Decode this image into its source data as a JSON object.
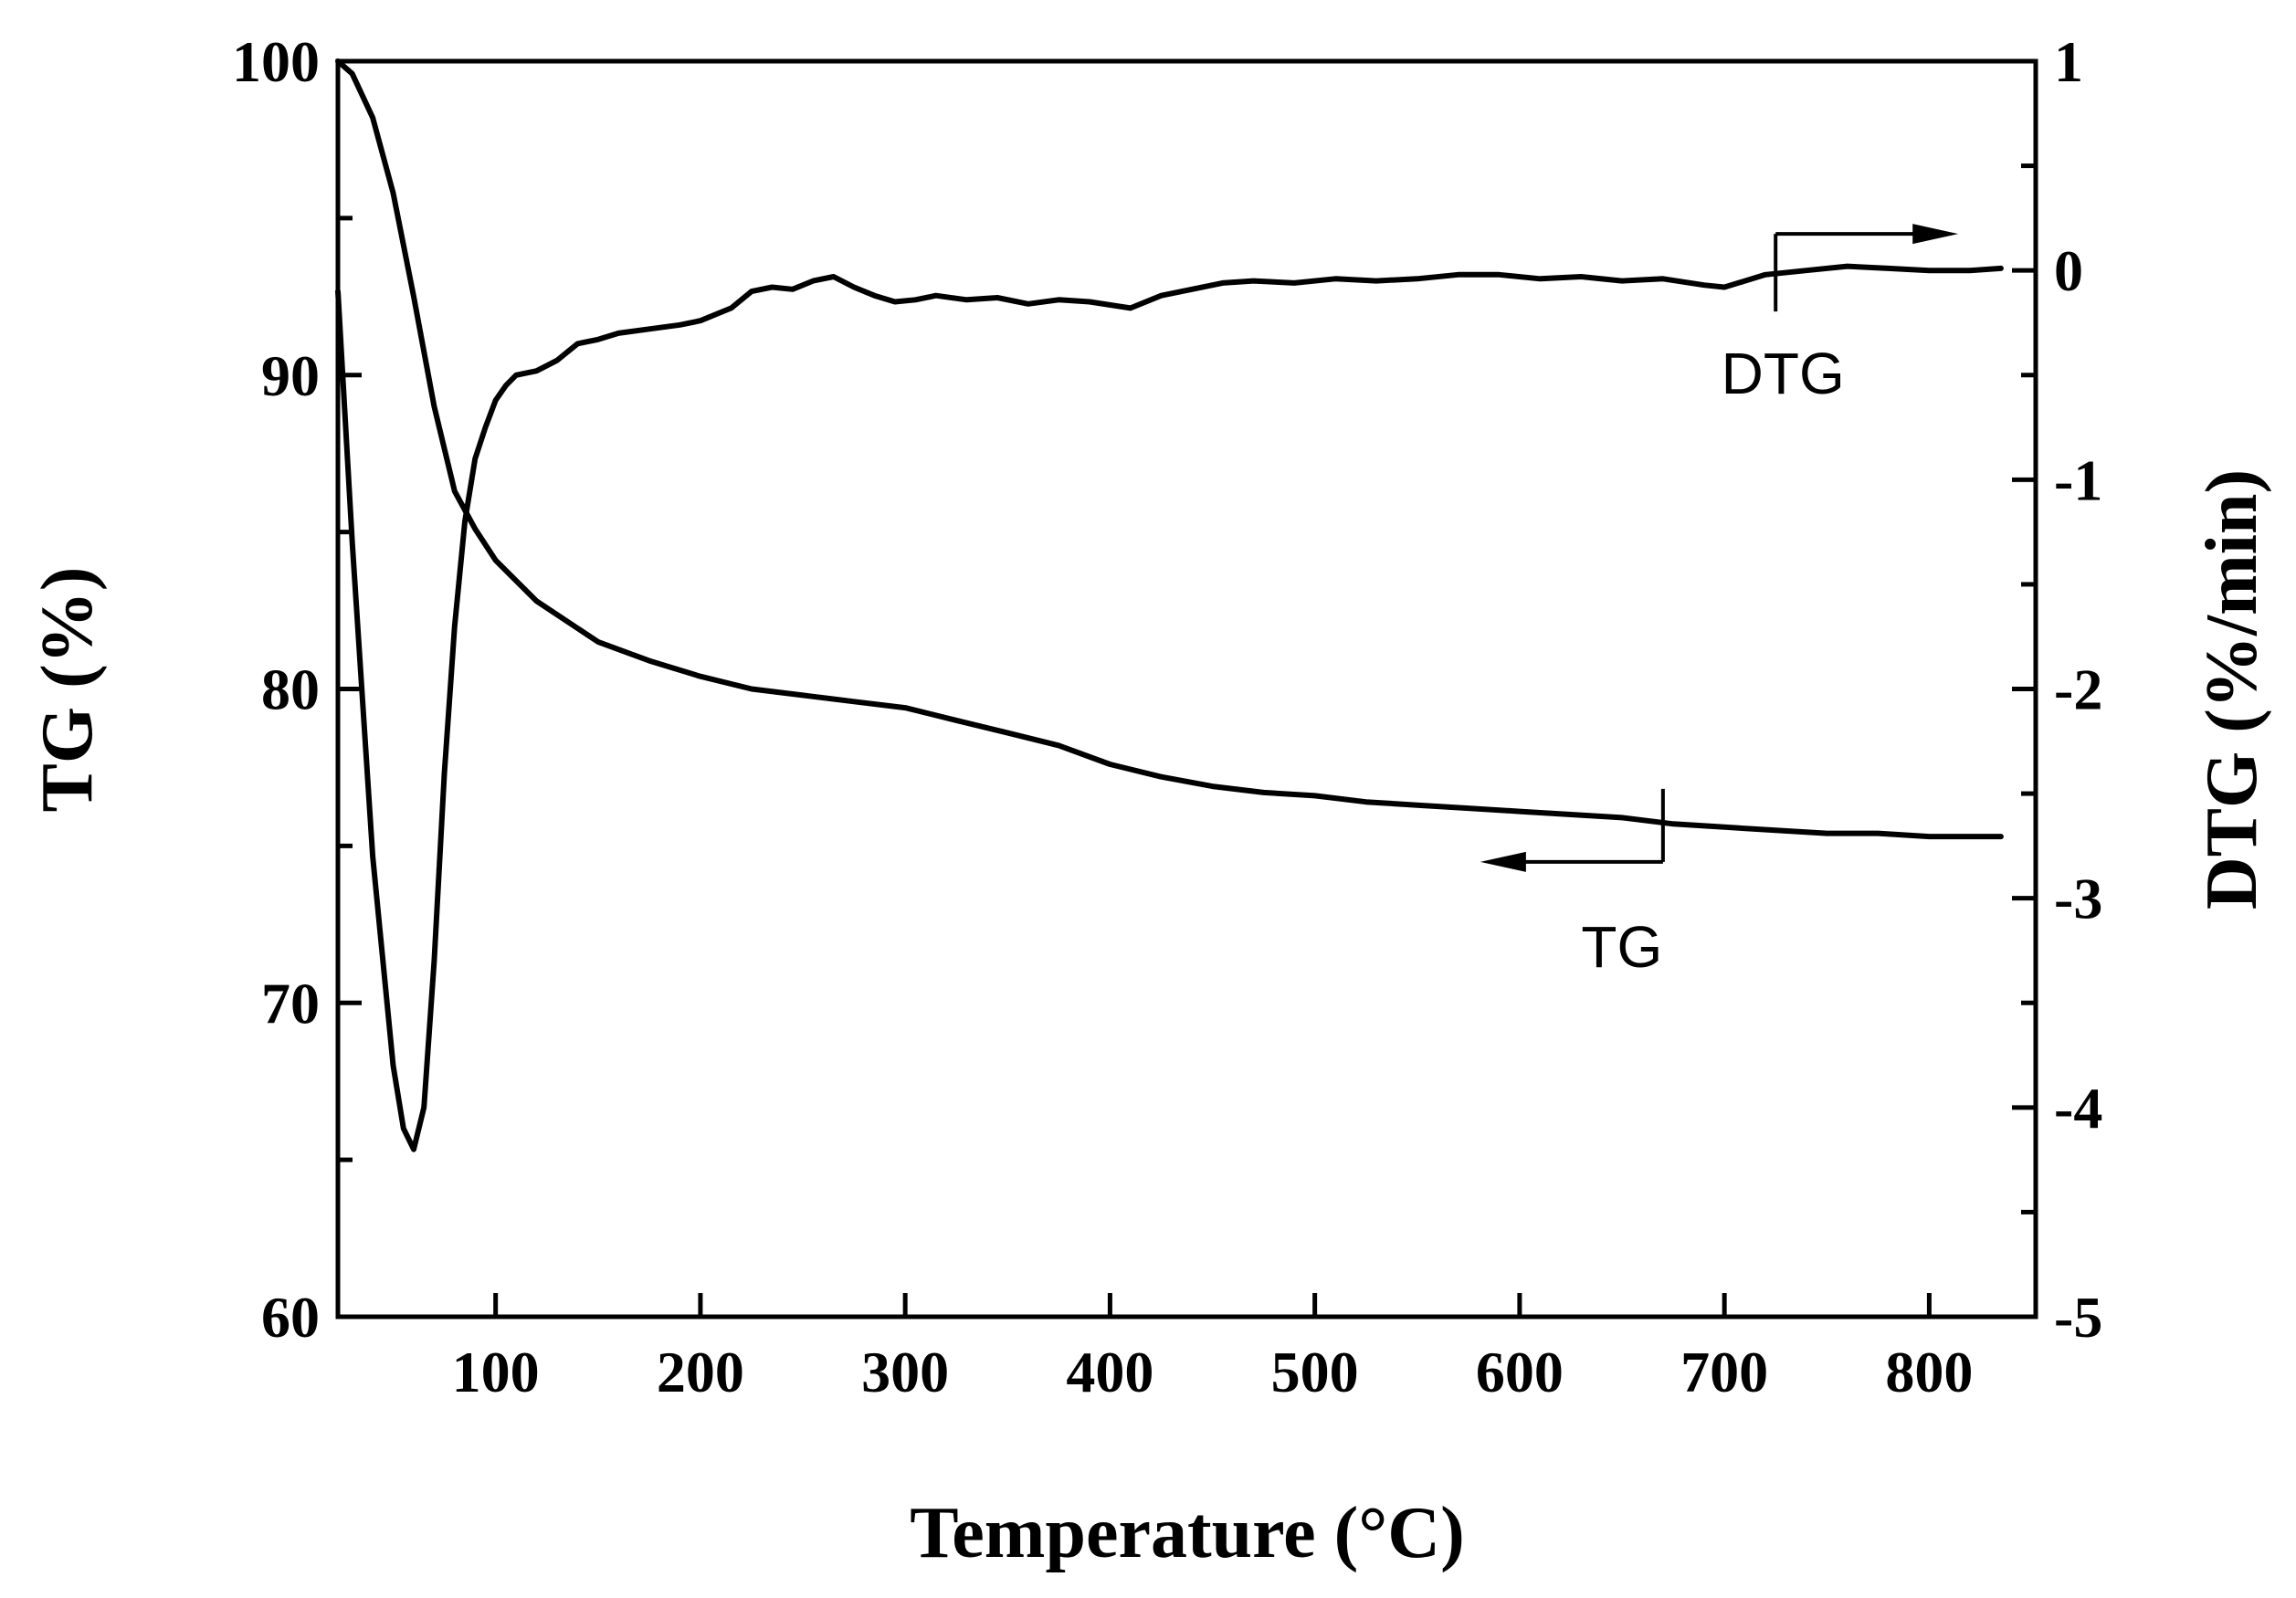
{
  "chart_data": {
    "type": "line",
    "title": "",
    "xlabel": "Temperature (°C)",
    "ylabel_left": "TG (%)",
    "ylabel_right": "DTG (%/min)",
    "xlim": [
      23,
      852
    ],
    "ylim_left": [
      60,
      100
    ],
    "ylim_right": [
      -5,
      1
    ],
    "x_ticks": [
      100,
      200,
      300,
      400,
      500,
      600,
      700,
      800
    ],
    "x_tick_labels": [
      "100",
      "200",
      "300",
      "400",
      "500",
      "600",
      "700",
      "800"
    ],
    "y_left_ticks": [
      60,
      70,
      80,
      90,
      100
    ],
    "y_left_tick_labels": [
      "60",
      "70",
      "80",
      "90",
      "100"
    ],
    "y_left_minor_ticks": [
      65,
      75,
      85,
      95
    ],
    "y_right_ticks": [
      -5,
      -4,
      -3,
      -2,
      -1,
      0,
      1
    ],
    "y_right_tick_labels": [
      "-5",
      "-4",
      "-3",
      "-2",
      "-1",
      "0",
      "1"
    ],
    "y_right_minor_ticks": [
      -4.5,
      -3.5,
      -2.5,
      -1.5,
      -0.5,
      0.5
    ],
    "grid": false,
    "series": [
      {
        "name": "TG",
        "axis": "left",
        "x": [
          23,
          30,
          40,
          50,
          60,
          70,
          80,
          90,
          100,
          120,
          150,
          175,
          200,
          225,
          250,
          275,
          300,
          325,
          350,
          375,
          400,
          425,
          450,
          475,
          500,
          525,
          550,
          575,
          600,
          625,
          650,
          675,
          700,
          725,
          750,
          775,
          800,
          835
        ],
        "y": [
          100,
          99.6,
          98.2,
          95.8,
          92.5,
          89,
          86.3,
          85.1,
          84.1,
          82.8,
          81.5,
          80.9,
          80.4,
          80,
          79.8,
          79.6,
          79.4,
          79,
          78.6,
          78.2,
          77.6,
          77.2,
          76.9,
          76.7,
          76.6,
          76.4,
          76.3,
          76.2,
          76.1,
          76,
          75.9,
          75.7,
          75.6,
          75.5,
          75.4,
          75.4,
          75.3,
          75.3
        ]
      },
      {
        "name": "DTG",
        "axis": "right",
        "x": [
          23,
          30,
          40,
          50,
          55,
          60,
          65,
          70,
          75,
          80,
          85,
          90,
          95,
          100,
          105,
          110,
          120,
          130,
          140,
          150,
          160,
          175,
          190,
          200,
          215,
          225,
          235,
          245,
          255,
          265,
          275,
          285,
          295,
          305,
          315,
          330,
          345,
          360,
          375,
          390,
          410,
          425,
          440,
          455,
          470,
          490,
          510,
          530,
          550,
          570,
          590,
          610,
          630,
          650,
          670,
          690,
          700,
          720,
          740,
          760,
          780,
          800,
          820,
          835
        ],
        "y": [
          -0.1,
          -1.3,
          -2.8,
          -3.8,
          -4.1,
          -4.2,
          -4.0,
          -3.3,
          -2.4,
          -1.7,
          -1.2,
          -0.9,
          -0.75,
          -0.62,
          -0.55,
          -0.5,
          -0.48,
          -0.43,
          -0.35,
          -0.33,
          -0.3,
          -0.28,
          -0.26,
          -0.24,
          -0.18,
          -0.1,
          -0.08,
          -0.09,
          -0.05,
          -0.03,
          -0.08,
          -0.12,
          -0.15,
          -0.14,
          -0.12,
          -0.14,
          -0.13,
          -0.16,
          -0.14,
          -0.15,
          -0.18,
          -0.12,
          -0.09,
          -0.06,
          -0.05,
          -0.06,
          -0.04,
          -0.05,
          -0.04,
          -0.02,
          -0.02,
          -0.04,
          -0.03,
          -0.05,
          -0.04,
          -0.07,
          -0.08,
          -0.02,
          0.0,
          0.02,
          0.01,
          0.0,
          0.0,
          0.01
        ]
      }
    ],
    "annotations": [
      {
        "id": "dtg",
        "text": "DTG",
        "at_x": 725,
        "at_y": 0,
        "axis": "right",
        "arrow": "right"
      },
      {
        "id": "tg",
        "text": "TG",
        "at_x": 670,
        "at_y": 75.8,
        "axis": "left",
        "arrow": "left"
      }
    ]
  }
}
